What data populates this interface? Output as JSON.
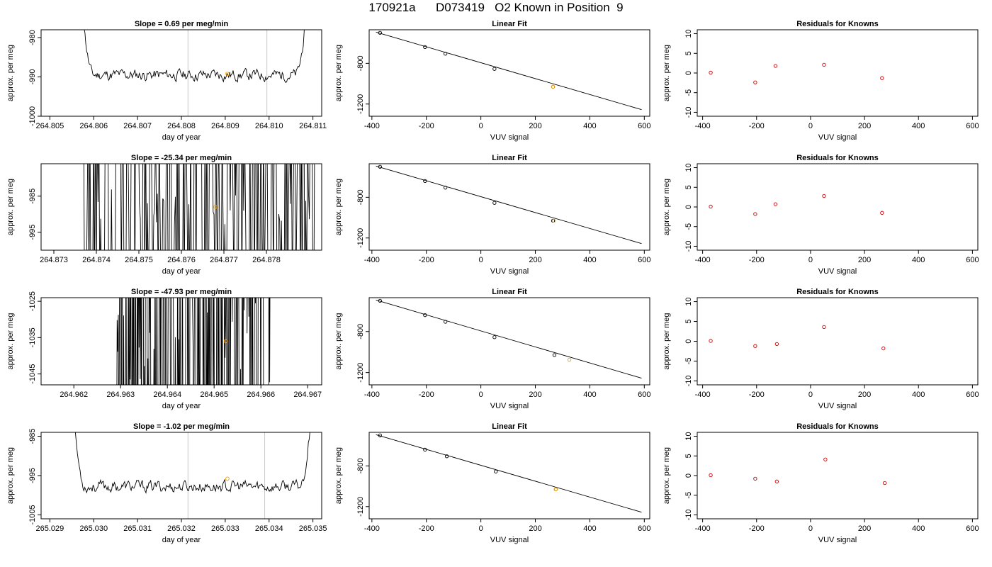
{
  "page": {
    "title": "170921a      D073419   O2 Known in Position  9"
  },
  "colors": {
    "trace": "#000000",
    "highlight": "#ffa500",
    "residual_point": "#cc0000",
    "fit_line": "#000000",
    "marker_line": "#c8c8c8"
  },
  "chart_data": [
    {
      "type": "line",
      "row": 0,
      "title": "Slope =  0.69  per meg/min",
      "xlabel": "day of year",
      "ylabel": "approx. per meg",
      "xlim": [
        264.8048,
        264.8112
      ],
      "ylim": [
        -1000,
        -978
      ],
      "xticks": [
        264.805,
        264.806,
        264.807,
        264.808,
        264.809,
        264.81,
        264.811
      ],
      "xtick_labels": [
        "264.805",
        "264.806",
        "264.807",
        "264.808",
        "264.809",
        "264.810",
        "264.811"
      ],
      "yticks": [
        -1000,
        -990,
        -980
      ],
      "ytick_labels": [
        "-1000",
        "-990",
        "-980"
      ],
      "trace": {
        "x_start": 264.8057,
        "x_end": 264.8109,
        "base": -989.5,
        "amp": 2.6,
        "seed": 11,
        "mode": "smooth"
      },
      "marker_lines": [
        264.80815,
        264.80995
      ],
      "highlight_point": {
        "x": 264.80905,
        "y": -989.2
      }
    },
    {
      "type": "scatter",
      "row": 0,
      "title": "Linear Fit",
      "xlabel": "VUV signal",
      "ylabel": "approx. per meg",
      "xlim": [
        -410,
        620
      ],
      "ylim": [
        -1320,
        -470
      ],
      "xticks": [
        -400,
        -200,
        0,
        200,
        400,
        600
      ],
      "xtick_labels": [
        "-400",
        "-200",
        "0",
        "200",
        "400",
        "600"
      ],
      "yticks": [
        -1200,
        -800
      ],
      "ytick_labels": [
        "-1200",
        "-800"
      ],
      "points": {
        "x": [
          -370,
          -205,
          -130,
          50,
          265
        ],
        "y": [
          -500,
          -640,
          -705,
          -855,
          -1030
        ]
      },
      "highlight_points": {
        "x": [
          265
        ],
        "y": [
          -1030
        ]
      },
      "fit_line": {
        "x": [
          -385,
          590
        ],
        "y": [
          -493,
          -1255
        ]
      }
    },
    {
      "type": "scatter",
      "row": 0,
      "title": "Residuals for Knowns",
      "xlabel": "VUV signal",
      "ylabel": "approx. per meg",
      "xlim": [
        -420,
        620
      ],
      "ylim": [
        -11,
        11
      ],
      "xticks": [
        -400,
        -200,
        0,
        200,
        400,
        600
      ],
      "xtick_labels": [
        "-400",
        "-200",
        "0",
        "200",
        "400",
        "600"
      ],
      "yticks": [
        -10,
        -5,
        0,
        5,
        10
      ],
      "ytick_labels": [
        "-10",
        "-5",
        "0",
        "5",
        "10"
      ],
      "points": {
        "x": [
          -370,
          -205,
          -130,
          50,
          265
        ],
        "y": [
          0.1,
          -2.4,
          1.8,
          2.1,
          -1.3
        ]
      }
    },
    {
      "type": "line",
      "row": 1,
      "title": "Slope =  -25.34  per meg/min",
      "xlabel": "day of year",
      "ylabel": "approx. per meg",
      "xlim": [
        264.8727,
        264.8793
      ],
      "ylim": [
        -1000,
        -976
      ],
      "xticks": [
        264.873,
        264.874,
        264.875,
        264.876,
        264.877,
        264.878
      ],
      "xtick_labels": [
        "264.873",
        "264.874",
        "264.875",
        "264.876",
        "264.877",
        "264.878"
      ],
      "yticks": [
        -995,
        -985
      ],
      "ytick_labels": [
        "-995",
        "-985"
      ],
      "trace": {
        "x_start": 264.8737,
        "x_end": 264.8792,
        "base": -988,
        "amp": 25,
        "seed": 23,
        "mode": "spiky"
      },
      "marker_lines": [],
      "highlight_point": {
        "x": 264.8768,
        "y": -988
      }
    },
    {
      "type": "scatter",
      "row": 1,
      "title": "Linear Fit",
      "xlabel": "VUV signal",
      "ylabel": "approx. per meg",
      "xlim": [
        -410,
        620
      ],
      "ylim": [
        -1320,
        -470
      ],
      "xticks": [
        -400,
        -200,
        0,
        200,
        400,
        600
      ],
      "xtick_labels": [
        "-400",
        "-200",
        "0",
        "200",
        "400",
        "600"
      ],
      "yticks": [
        -1200,
        -800
      ],
      "ytick_labels": [
        "-1200",
        "-800"
      ],
      "points": {
        "x": [
          -370,
          -205,
          -130,
          50,
          265
        ],
        "y": [
          -500,
          -640,
          -705,
          -855,
          -1030
        ]
      },
      "highlight_points": {
        "x": [
          268
        ],
        "y": [
          -1030
        ]
      },
      "fit_line": {
        "x": [
          -385,
          590
        ],
        "y": [
          -493,
          -1255
        ]
      }
    },
    {
      "type": "scatter",
      "row": 1,
      "title": "Residuals for Knowns",
      "xlabel": "VUV signal",
      "ylabel": "approx. per meg",
      "xlim": [
        -420,
        620
      ],
      "ylim": [
        -11,
        11
      ],
      "xticks": [
        -400,
        -200,
        0,
        200,
        400,
        600
      ],
      "xtick_labels": [
        "-400",
        "-200",
        "0",
        "200",
        "400",
        "600"
      ],
      "yticks": [
        -10,
        -5,
        0,
        5,
        10
      ],
      "ytick_labels": [
        "-10",
        "-5",
        "0",
        "5",
        "10"
      ],
      "points": {
        "x": [
          -370,
          -205,
          -130,
          50,
          265
        ],
        "y": [
          0.1,
          -1.8,
          0.7,
          2.8,
          -1.5
        ]
      }
    },
    {
      "type": "line",
      "row": 2,
      "title": "Slope =  -47.93  per meg/min",
      "xlabel": "day of year",
      "ylabel": "approx. per meg",
      "xlim": [
        264.9613,
        264.9673
      ],
      "ylim": [
        -1048,
        -1024
      ],
      "xticks": [
        264.962,
        264.963,
        264.964,
        264.965,
        264.966,
        264.967
      ],
      "xtick_labels": [
        "264.962",
        "264.963",
        "264.964",
        "264.965",
        "264.966",
        "264.967"
      ],
      "yticks": [
        -1045,
        -1035,
        -1025
      ],
      "ytick_labels": [
        "-1045",
        "-1035",
        "-1025"
      ],
      "trace": {
        "x_start": 264.9629,
        "x_end": 264.9662,
        "base": -1036,
        "amp": 40,
        "seed": 37,
        "mode": "sparse"
      },
      "marker_lines": [],
      "highlight_point": {
        "x": 264.96525,
        "y": -1036
      }
    },
    {
      "type": "scatter",
      "row": 2,
      "title": "Linear Fit",
      "xlabel": "VUV signal",
      "ylabel": "approx. per meg",
      "xlim": [
        -410,
        620
      ],
      "ylim": [
        -1320,
        -470
      ],
      "xticks": [
        -400,
        -200,
        0,
        200,
        400,
        600
      ],
      "xtick_labels": [
        "-400",
        "-200",
        "0",
        "200",
        "400",
        "600"
      ],
      "yticks": [
        -1200,
        -800
      ],
      "ytick_labels": [
        "-1200",
        "-800"
      ],
      "points": {
        "x": [
          -370,
          -205,
          -130,
          50,
          270
        ],
        "y": [
          -500,
          -640,
          -705,
          -855,
          -1030
        ]
      },
      "highlight_points": {
        "x": [
          325
        ],
        "y": [
          -1075
        ]
      },
      "fit_line": {
        "x": [
          -385,
          590
        ],
        "y": [
          -493,
          -1255
        ]
      }
    },
    {
      "type": "scatter",
      "row": 2,
      "title": "Residuals for Knowns",
      "xlabel": "VUV signal",
      "ylabel": "approx. per meg",
      "xlim": [
        -420,
        620
      ],
      "ylim": [
        -11,
        11
      ],
      "xticks": [
        -400,
        -200,
        0,
        200,
        400,
        600
      ],
      "xtick_labels": [
        "-400",
        "-200",
        "0",
        "200",
        "400",
        "600"
      ],
      "yticks": [
        -10,
        -5,
        0,
        5,
        10
      ],
      "ytick_labels": [
        "-10",
        "-5",
        "0",
        "5",
        "10"
      ],
      "points": {
        "x": [
          -370,
          -205,
          -125,
          50,
          270
        ],
        "y": [
          0.1,
          -1.2,
          -0.7,
          3.6,
          -1.8
        ]
      }
    },
    {
      "type": "line",
      "row": 3,
      "title": "Slope =  -1.02  per meg/min",
      "xlabel": "day of year",
      "ylabel": "approx. per meg",
      "xlim": [
        265.0288,
        265.0352
      ],
      "ylim": [
        -1006,
        -984
      ],
      "xticks": [
        265.029,
        265.03,
        265.031,
        265.032,
        265.033,
        265.034,
        265.035
      ],
      "xtick_labels": [
        "265.029",
        "265.030",
        "265.031",
        "265.032",
        "265.033",
        "265.034",
        "265.035"
      ],
      "yticks": [
        -1005,
        -995,
        -985
      ],
      "ytick_labels": [
        "-1005",
        "-995",
        "-985"
      ],
      "trace": {
        "x_start": 265.0295,
        "x_end": 265.035,
        "base": -997.8,
        "amp": 2.7,
        "seed": 53,
        "mode": "smooth"
      },
      "marker_lines": [
        265.03215,
        265.0339
      ],
      "highlight_point": {
        "x": 265.03305,
        "y": -995.8
      }
    },
    {
      "type": "scatter",
      "row": 3,
      "title": "Linear Fit",
      "xlabel": "VUV signal",
      "ylabel": "approx. per meg",
      "xlim": [
        -410,
        620
      ],
      "ylim": [
        -1320,
        -470
      ],
      "xticks": [
        -400,
        -200,
        0,
        200,
        400,
        600
      ],
      "xtick_labels": [
        "-400",
        "-200",
        "0",
        "200",
        "400",
        "600"
      ],
      "yticks": [
        -1200,
        -800
      ],
      "ytick_labels": [
        "-1200",
        "-800"
      ],
      "points": {
        "x": [
          -370,
          -205,
          -125,
          55,
          275
        ],
        "y": [
          -500,
          -640,
          -705,
          -855,
          -1030
        ]
      },
      "highlight_points": {
        "x": [
          275
        ],
        "y": [
          -1030
        ]
      },
      "fit_line": {
        "x": [
          -385,
          590
        ],
        "y": [
          -493,
          -1255
        ]
      }
    },
    {
      "type": "scatter",
      "row": 3,
      "title": "Residuals for Knowns",
      "xlabel": "VUV signal",
      "ylabel": "approx. per meg",
      "xlim": [
        -420,
        620
      ],
      "ylim": [
        -11,
        11
      ],
      "xticks": [
        -400,
        -200,
        0,
        200,
        400,
        600
      ],
      "xtick_labels": [
        "-400",
        "-200",
        "0",
        "200",
        "400",
        "600"
      ],
      "yticks": [
        -10,
        -5,
        0,
        5,
        10
      ],
      "ytick_labels": [
        "-10",
        "-5",
        "0",
        "5",
        "10"
      ],
      "points": {
        "x": [
          -370,
          -205,
          -125,
          55,
          275
        ],
        "y": [
          0.1,
          -0.8,
          -1.5,
          4.1,
          -1.9
        ]
      }
    }
  ]
}
